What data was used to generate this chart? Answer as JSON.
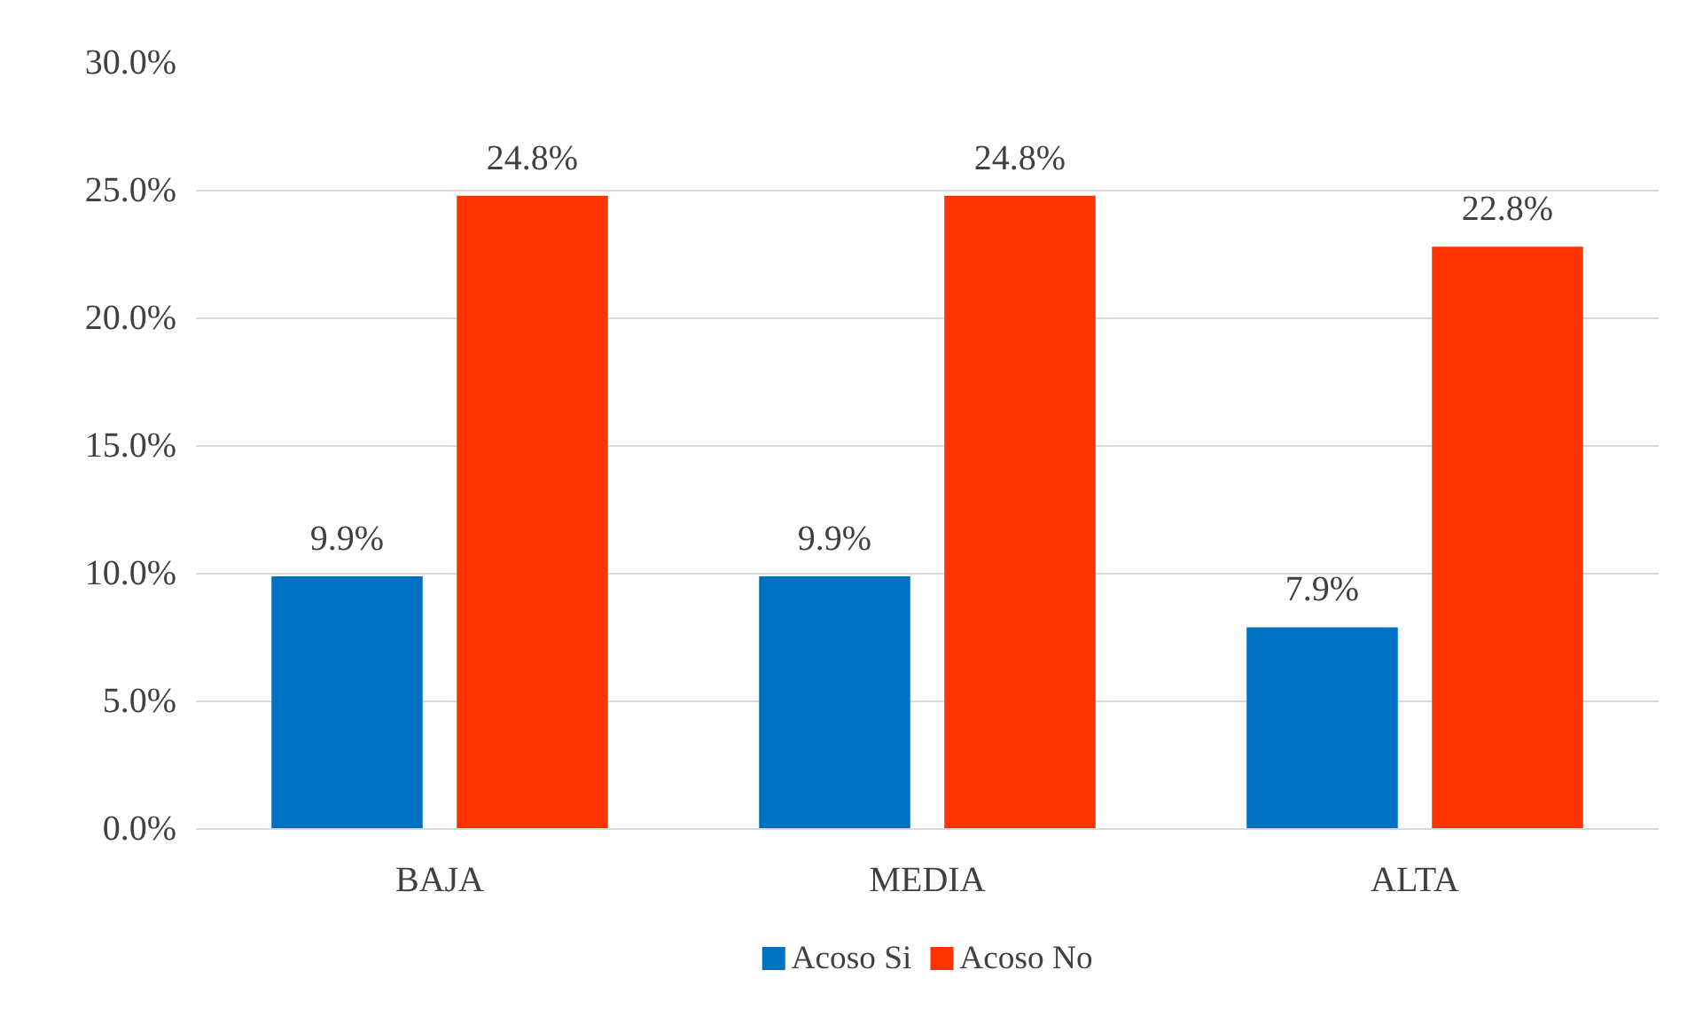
{
  "chart_data": {
    "type": "bar",
    "categories": [
      "BAJA",
      "MEDIA",
      "ALTA"
    ],
    "series": [
      {
        "name": "Acoso Si",
        "color": "#0070c0",
        "values": [
          9.9,
          9.9,
          7.9
        ],
        "value_labels": [
          "9.9%",
          "9.9%",
          "7.9%"
        ]
      },
      {
        "name": "Acoso No",
        "color": "#ff3300",
        "values": [
          24.8,
          24.8,
          22.8
        ],
        "value_labels": [
          "24.8%",
          "24.8%",
          "22.8%"
        ]
      }
    ],
    "ylim": [
      0,
      30
    ],
    "yticks": [
      {
        "value": 0,
        "label": "0.0%"
      },
      {
        "value": 5,
        "label": "5.0%"
      },
      {
        "value": 10,
        "label": "10.0%"
      },
      {
        "value": 15,
        "label": "15.0%"
      },
      {
        "value": 20,
        "label": "20.0%"
      },
      {
        "value": 25,
        "label": "25.0%"
      },
      {
        "value": 30,
        "label": "30.0%"
      }
    ],
    "grid": "y",
    "legend": "bottom"
  }
}
